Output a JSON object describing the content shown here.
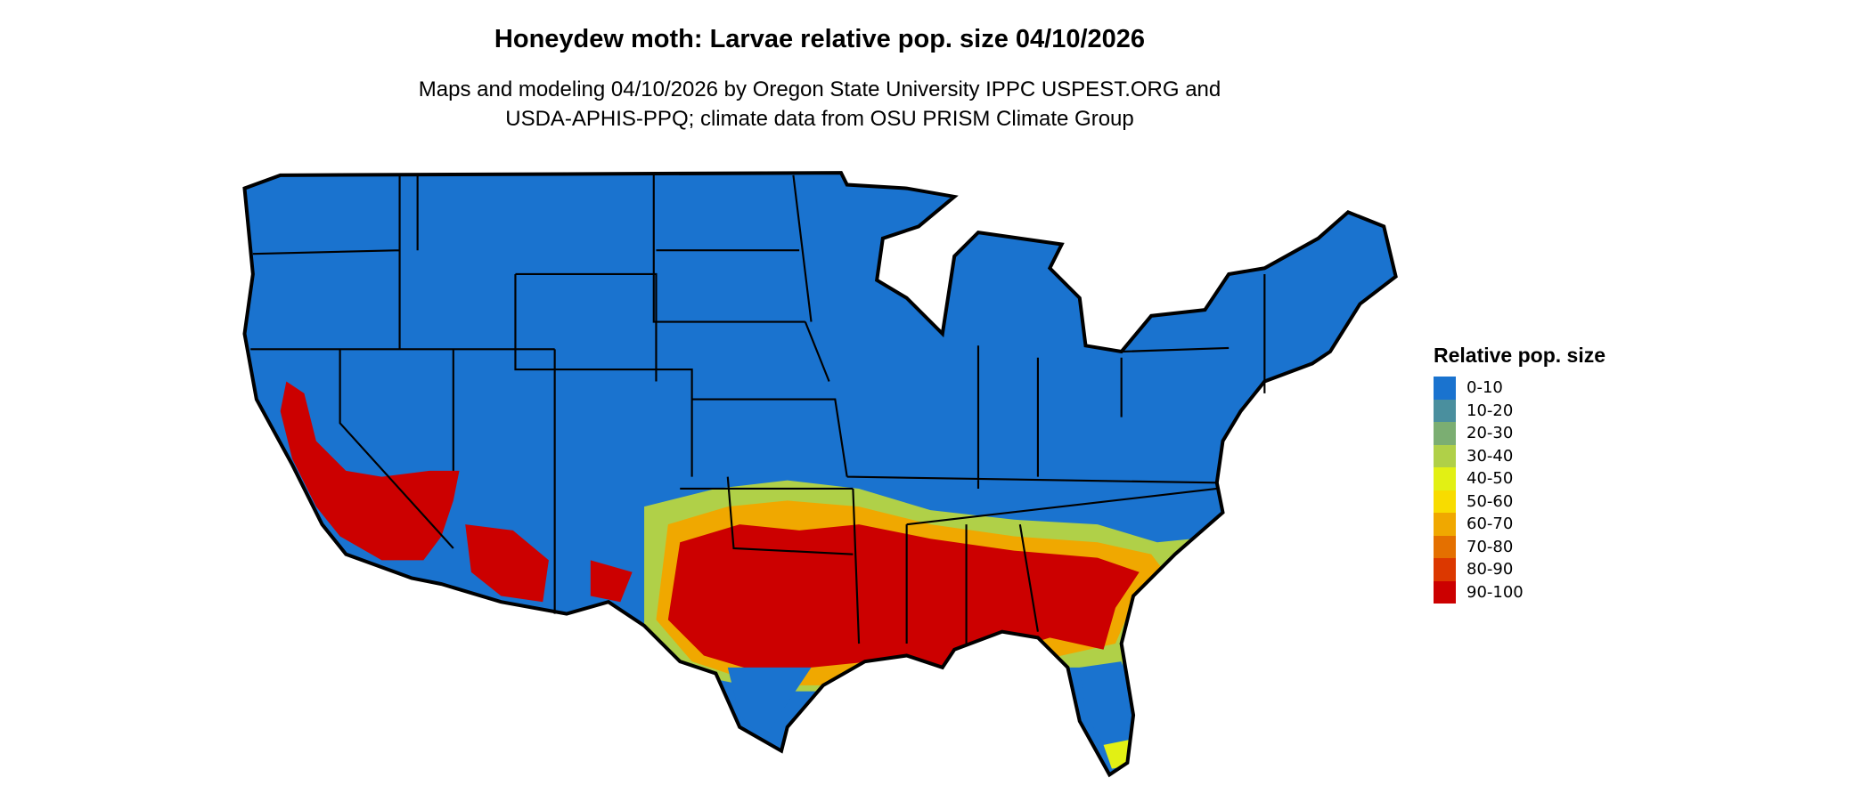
{
  "title": "Honeydew moth: Larvae relative pop. size 04/10/2026",
  "subtitle_line1": "Maps and modeling 04/10/2026 by Oregon State University IPPC USPEST.ORG and",
  "subtitle_line2": "USDA-APHIS-PPQ; climate data from OSU PRISM Climate Group",
  "legend": {
    "title": "Relative pop. size",
    "items": [
      {
        "label": "0-10",
        "color": "#1A73CF"
      },
      {
        "label": "10-20",
        "color": "#4A8F9E"
      },
      {
        "label": "20-30",
        "color": "#7BAE72"
      },
      {
        "label": "30-40",
        "color": "#B0D048"
      },
      {
        "label": "40-50",
        "color": "#E2F014"
      },
      {
        "label": "50-60",
        "color": "#F8DC00"
      },
      {
        "label": "60-70",
        "color": "#F0A800"
      },
      {
        "label": "70-80",
        "color": "#E47000"
      },
      {
        "label": "80-90",
        "color": "#DC3800"
      },
      {
        "label": "90-100",
        "color": "#CC0000"
      }
    ]
  }
}
